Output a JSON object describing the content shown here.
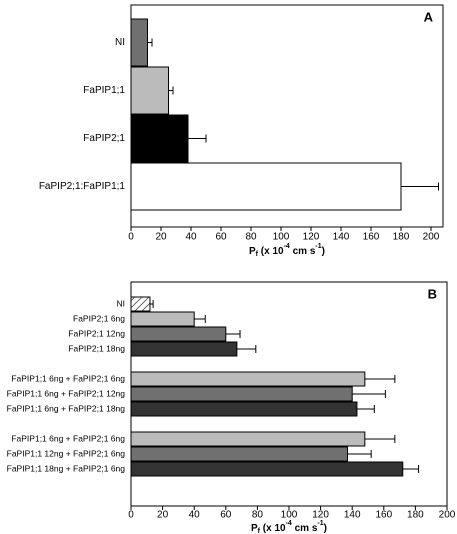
{
  "chart_data": [
    {
      "type": "bar",
      "orientation": "horizontal",
      "panel": "A",
      "groups": [
        {
          "categories": [
            "NI",
            "FaPIP1;1",
            "FaPIP2;1",
            "FaPIP2;1:FaPIP1;1"
          ],
          "values": [
            11,
            25,
            38,
            180
          ],
          "errors": [
            3,
            3,
            12,
            25
          ],
          "colors": [
            "#707070",
            "#bbbbbb",
            "#000000",
            "#ffffff"
          ],
          "hatch": [
            false,
            false,
            false,
            false
          ]
        }
      ],
      "x_label": [
        "P",
        "f",
        " (x 10",
        "-4",
        " cm s",
        "-1",
        ")"
      ],
      "xlim": [
        0,
        208
      ],
      "xticks": [
        0,
        20,
        40,
        60,
        80,
        100,
        120,
        140,
        160,
        180,
        200
      ]
    },
    {
      "type": "bar",
      "orientation": "horizontal",
      "panel": "B",
      "groups": [
        {
          "categories": [
            "NI",
            "FaPIP2;1 6ng",
            "FaPIP2;1 12ng",
            "FaPIP2;1 18ng"
          ],
          "values": [
            12,
            40,
            60,
            67
          ],
          "errors": [
            2,
            7,
            9,
            12
          ],
          "colors": [
            "#ffffff",
            "#bbbbbb",
            "#707070",
            "#333333"
          ],
          "hatch": [
            true,
            false,
            false,
            false
          ]
        },
        {
          "categories": [
            "FaPIP1;1 6ng + FaPIP2;1 6ng",
            "FaPIP1;1 6ng + FaPIP2;1 12ng",
            "FaPIP1;1 6ng + FaPIP2;1 18ng"
          ],
          "values": [
            148,
            140,
            143
          ],
          "errors": [
            19,
            21,
            11
          ],
          "colors": [
            "#bbbbbb",
            "#707070",
            "#333333"
          ],
          "hatch": [
            false,
            false,
            false
          ]
        },
        {
          "categories": [
            "FaPIP1;1 6ng + FaPIP2;1 6ng",
            "FaPIP1;1 12ng + FaPIP2;1 6ng",
            "FaPIP1;1 18ng + FaPIP2;1 6ng"
          ],
          "values": [
            148,
            137,
            172
          ],
          "errors": [
            19,
            15,
            10
          ],
          "colors": [
            "#bbbbbb",
            "#707070",
            "#333333"
          ],
          "hatch": [
            false,
            false,
            false
          ]
        }
      ],
      "x_label": [
        "P",
        "f",
        " (x 10",
        "-4",
        " cm s",
        "-1",
        ")"
      ],
      "xlim": [
        0,
        200
      ],
      "xticks": [
        0,
        20,
        40,
        60,
        80,
        100,
        120,
        140,
        160,
        180,
        200
      ]
    }
  ]
}
